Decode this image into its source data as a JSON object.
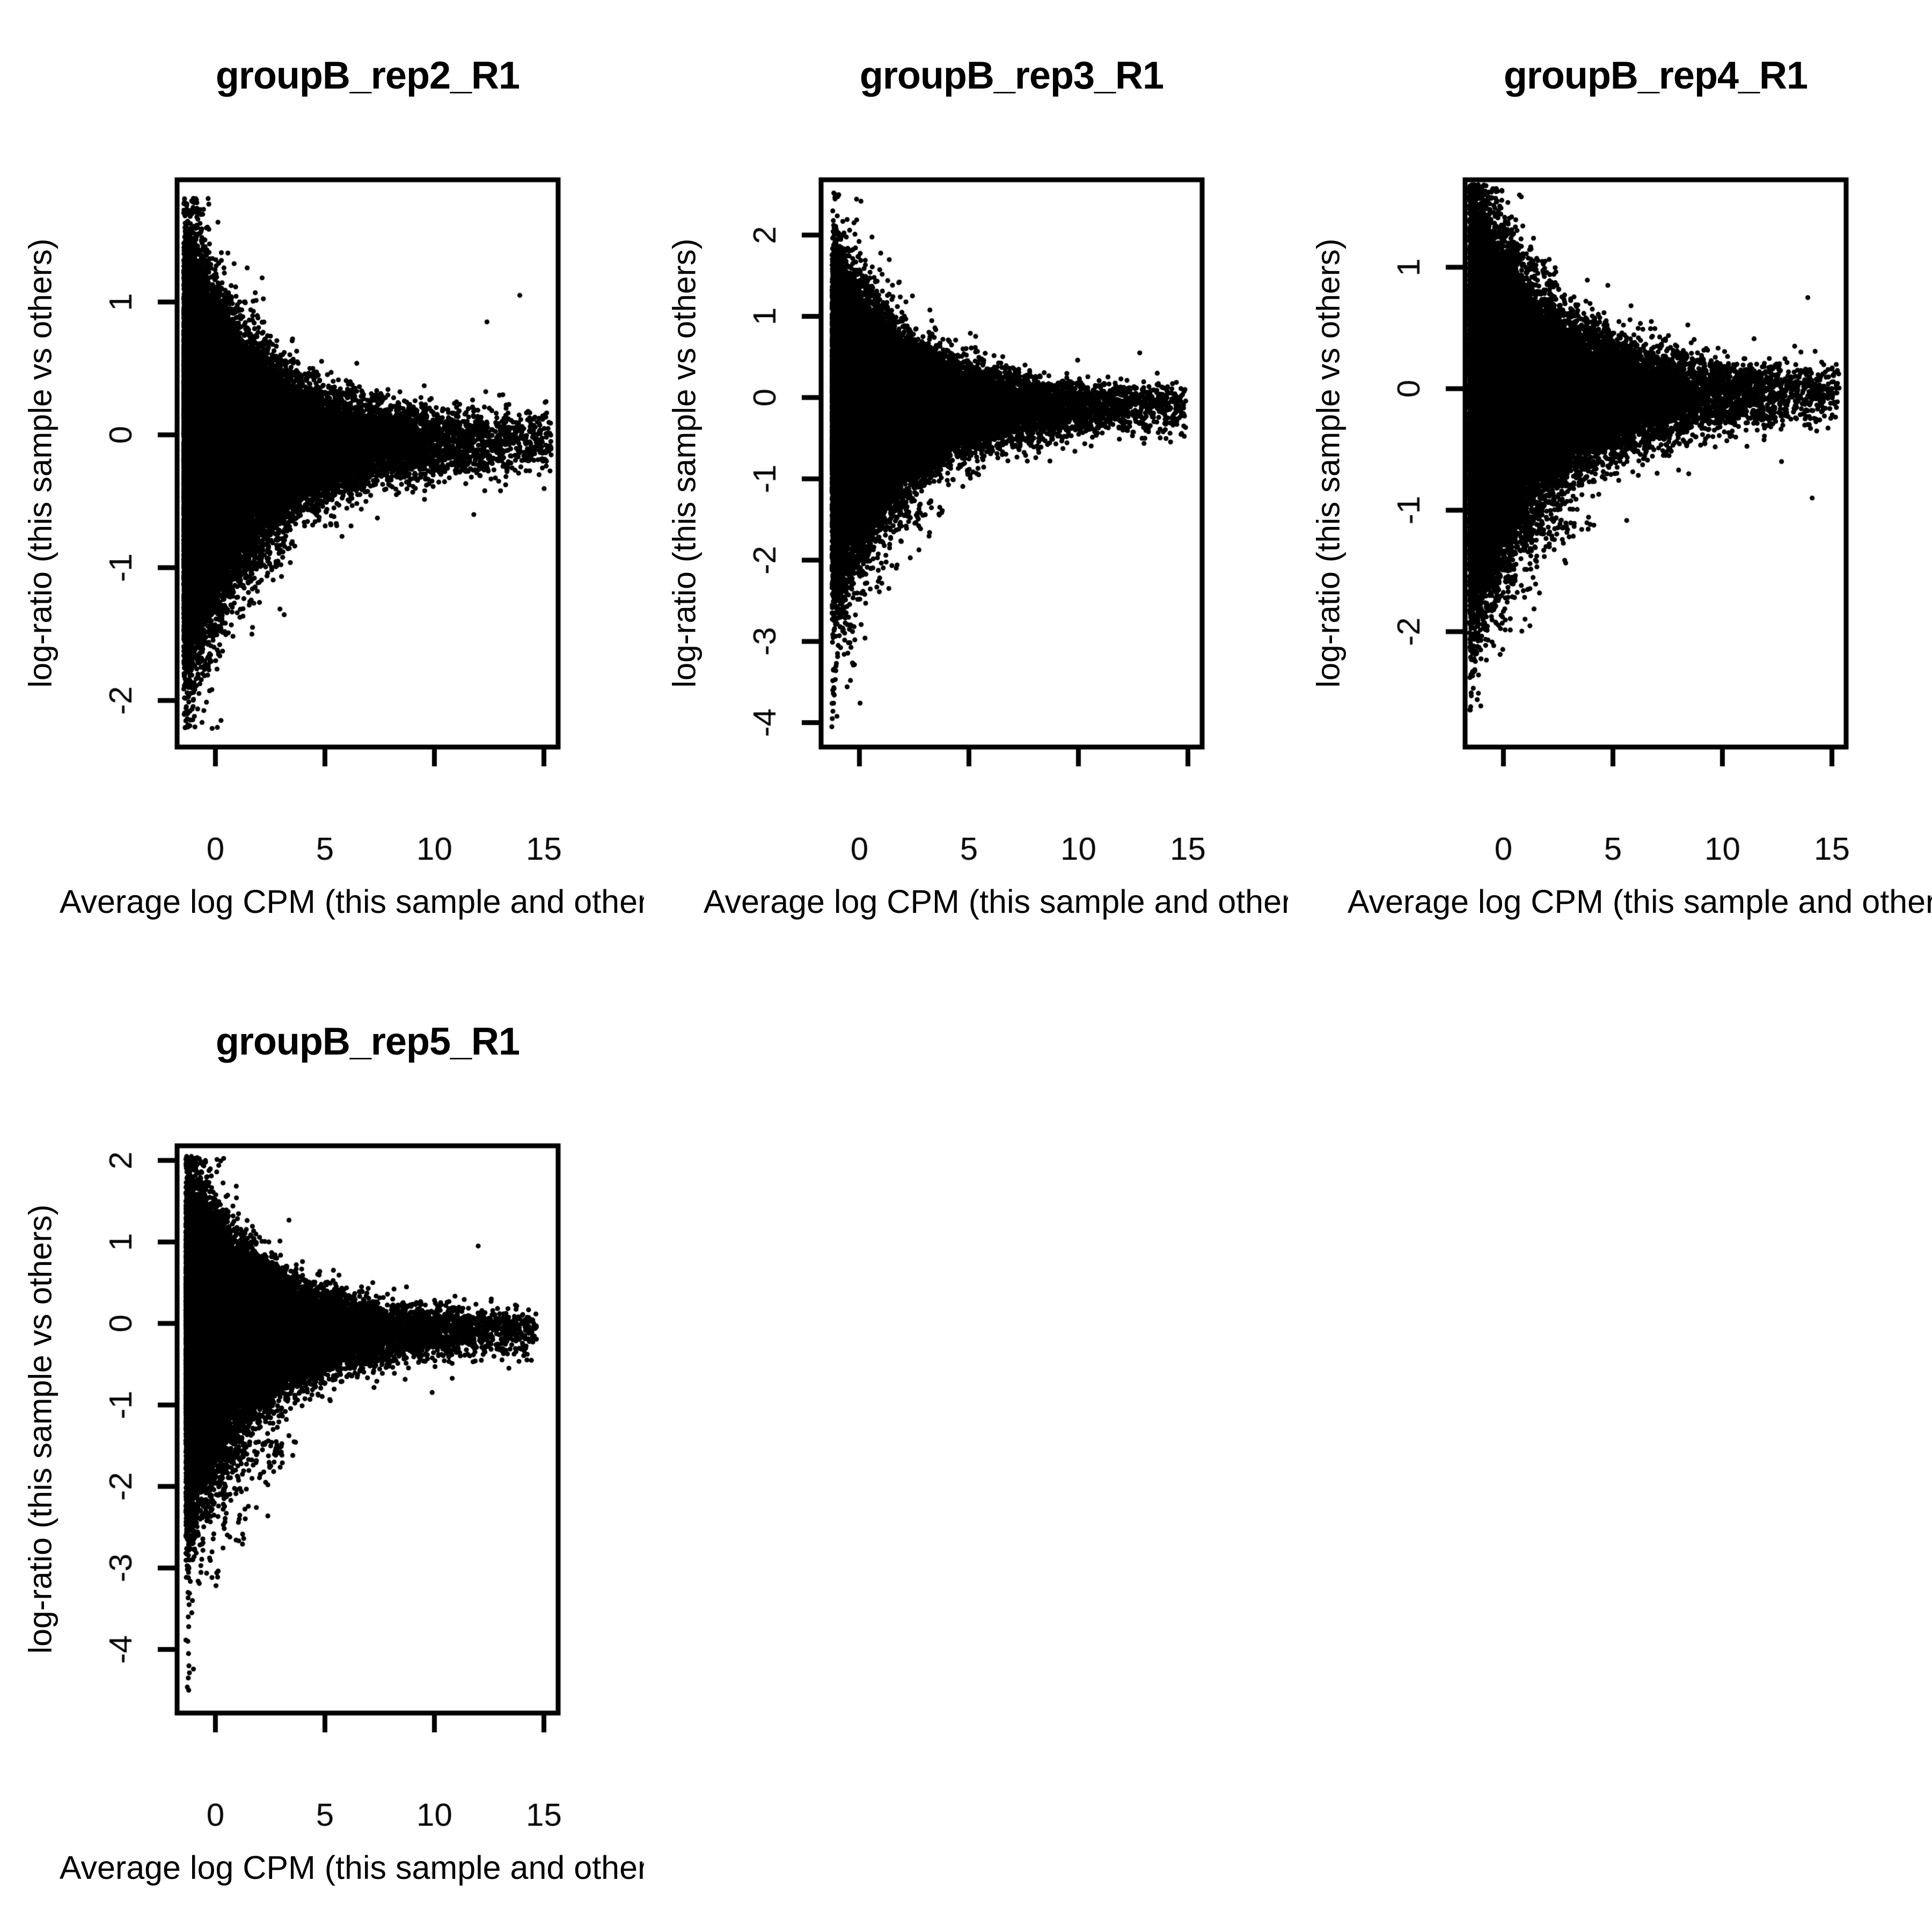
{
  "figure": {
    "background": "#ffffff",
    "rows": 2,
    "cols": 3,
    "point_color": "#000000"
  },
  "chart_data": [
    {
      "type": "scatter",
      "title": "groupB_rep2_R1",
      "xlabel": "Average log CPM (this sample and others)",
      "ylabel": "log-ratio (this sample vs others)",
      "xlim": [
        -1.75,
        15.65
      ],
      "ylim": [
        -2.35,
        1.92
      ],
      "xticks": [
        0,
        5,
        10,
        15
      ],
      "yticks": [
        1,
        0,
        -1,
        -2
      ],
      "grid": false,
      "legend": null,
      "points": {
        "seed": 11,
        "n": 42000,
        "x_left": -1.45,
        "x_max": 15.35,
        "mix": 0.55,
        "tau1": 1.6,
        "tau2": 4.2,
        "mu": -0.05,
        "h_base": 0.17,
        "h_amp": 1.02,
        "h_decay": 3.5,
        "asym_below": 1.13,
        "outlier_frac": 0.028,
        "outlier_scale": 1.6,
        "y_min": -2.22,
        "y_max": 1.78
      },
      "lower_tail": {
        "n": 300,
        "y_start": -0.95,
        "depth": 1.25,
        "x_reach": 5.0,
        "floor": -2.2
      },
      "extra_points": [
        [
          12.4,
          0.85
        ],
        [
          13.9,
          1.05
        ],
        [
          15.1,
          0.25
        ],
        [
          14.3,
          -0.12
        ],
        [
          11.8,
          -0.6
        ]
      ],
      "streak_points": []
    },
    {
      "type": "scatter",
      "title": "groupB_rep3_R1",
      "xlabel": "Average log CPM (this sample and others)",
      "ylabel": "log-ratio (this sample vs others)",
      "xlim": [
        -1.75,
        15.65
      ],
      "ylim": [
        -4.3,
        2.68
      ],
      "xticks": [
        0,
        5,
        10,
        15
      ],
      "yticks": [
        2,
        1,
        0,
        -1,
        -2,
        -3,
        -4
      ],
      "grid": false,
      "legend": null,
      "points": {
        "seed": 22,
        "n": 36000,
        "x_left": -1.25,
        "x_max": 14.9,
        "mix": 0.55,
        "tau1": 1.7,
        "tau2": 4.0,
        "mu": -0.1,
        "h_base": 0.2,
        "h_amp": 1.22,
        "h_decay": 3.6,
        "asym_below": 1.22,
        "outlier_frac": 0.03,
        "outlier_scale": 1.6,
        "y_min": -4.08,
        "y_max": 2.55
      },
      "lower_tail": {
        "n": 320,
        "y_start": -1.35,
        "depth": 2.5,
        "x_reach": 5.5,
        "floor": -4.0
      },
      "extra_points": [
        [
          14.6,
          -0.25
        ],
        [
          13.6,
          0.3
        ],
        [
          12.8,
          0.55
        ],
        [
          12.2,
          -0.4
        ]
      ],
      "streak_points": [
        [
          -1.26,
          -4.05
        ],
        [
          -1.24,
          -3.95
        ],
        [
          -1.21,
          -3.86
        ],
        [
          -1.18,
          -3.76
        ],
        [
          -1.15,
          -3.66
        ],
        [
          -1.17,
          -3.57
        ],
        [
          -1.1,
          -3.47
        ],
        [
          -1.08,
          -3.36
        ],
        [
          -1.05,
          -3.27
        ],
        [
          -1.0,
          -3.15
        ],
        [
          -0.97,
          -3.05
        ],
        [
          -0.92,
          -2.93
        ],
        [
          -0.88,
          -2.82
        ],
        [
          -0.84,
          -2.7
        ],
        [
          -0.8,
          -2.6
        ]
      ]
    },
    {
      "type": "scatter",
      "title": "groupB_rep4_R1",
      "xlabel": "Average log CPM (this sample and others)",
      "ylabel": "log-ratio (this sample vs others)",
      "xlim": [
        -1.75,
        15.65
      ],
      "ylim": [
        -2.95,
        1.72
      ],
      "xticks": [
        0,
        5,
        10,
        15
      ],
      "yticks": [
        1,
        0,
        -1,
        -2
      ],
      "grid": false,
      "legend": null,
      "points": {
        "seed": 33,
        "n": 38000,
        "x_left": -1.55,
        "x_max": 15.35,
        "mix": 0.55,
        "tau1": 1.7,
        "tau2": 4.3,
        "mu": -0.03,
        "h_base": 0.19,
        "h_amp": 1.08,
        "h_decay": 3.8,
        "asym_below": 1.15,
        "outlier_frac": 0.027,
        "outlier_scale": 1.55,
        "y_min": -2.7,
        "y_max": 1.68
      },
      "lower_tail": {
        "n": 300,
        "y_start": -1.1,
        "depth": 1.5,
        "x_reach": 6.0,
        "floor": -2.65
      },
      "extra_points": [
        [
          15.25,
          0.15
        ],
        [
          15.2,
          0.2
        ],
        [
          14.1,
          -0.9
        ],
        [
          13.3,
          0.35
        ],
        [
          12.7,
          -0.6
        ],
        [
          13.9,
          0.75
        ]
      ],
      "streak_points": []
    },
    {
      "type": "scatter",
      "title": "groupB_rep5_R1",
      "xlabel": "Average log CPM (this sample and others)",
      "ylabel": "log-ratio (this sample vs others)",
      "xlim": [
        -1.75,
        15.65
      ],
      "ylim": [
        -4.78,
        2.18
      ],
      "xticks": [
        0,
        5,
        10,
        15
      ],
      "yticks": [
        2,
        1,
        0,
        -1,
        -2,
        -3,
        -4
      ],
      "grid": false,
      "legend": null,
      "points": {
        "seed": 44,
        "n": 36000,
        "x_left": -1.35,
        "x_max": 14.7,
        "mix": 0.55,
        "tau1": 1.65,
        "tau2": 3.9,
        "mu": -0.08,
        "h_base": 0.2,
        "h_amp": 1.26,
        "h_decay": 3.4,
        "asym_below": 1.22,
        "outlier_frac": 0.03,
        "outlier_scale": 1.55,
        "y_min": -4.52,
        "y_max": 2.05
      },
      "lower_tail": {
        "n": 340,
        "y_start": -1.45,
        "depth": 2.7,
        "x_reach": 5.5,
        "floor": -4.45
      },
      "extra_points": [
        [
          14.4,
          0.05
        ],
        [
          13.4,
          -0.55
        ],
        [
          12.0,
          0.95
        ],
        [
          12.6,
          0.3
        ]
      ],
      "streak_points": [
        [
          -1.22,
          -2.1
        ],
        [
          -1.25,
          -2.25
        ],
        [
          -1.2,
          -2.4
        ],
        [
          -1.24,
          -2.55
        ],
        [
          -1.22,
          -2.72
        ],
        [
          -1.26,
          -2.9
        ],
        [
          -1.21,
          -3.0
        ],
        [
          -1.23,
          -3.12
        ],
        [
          -1.25,
          -3.3
        ],
        [
          -1.2,
          -3.45
        ],
        [
          -1.24,
          -3.6
        ],
        [
          -1.22,
          -3.72
        ],
        [
          -1.26,
          -3.9
        ],
        [
          -1.23,
          -4.05
        ],
        [
          -1.21,
          -4.2
        ],
        [
          -1.24,
          -4.35
        ],
        [
          -1.22,
          -4.5
        ],
        [
          -1.05,
          -3.4
        ],
        [
          -1.08,
          -3.55
        ],
        [
          -1.1,
          -2.6
        ]
      ]
    }
  ]
}
